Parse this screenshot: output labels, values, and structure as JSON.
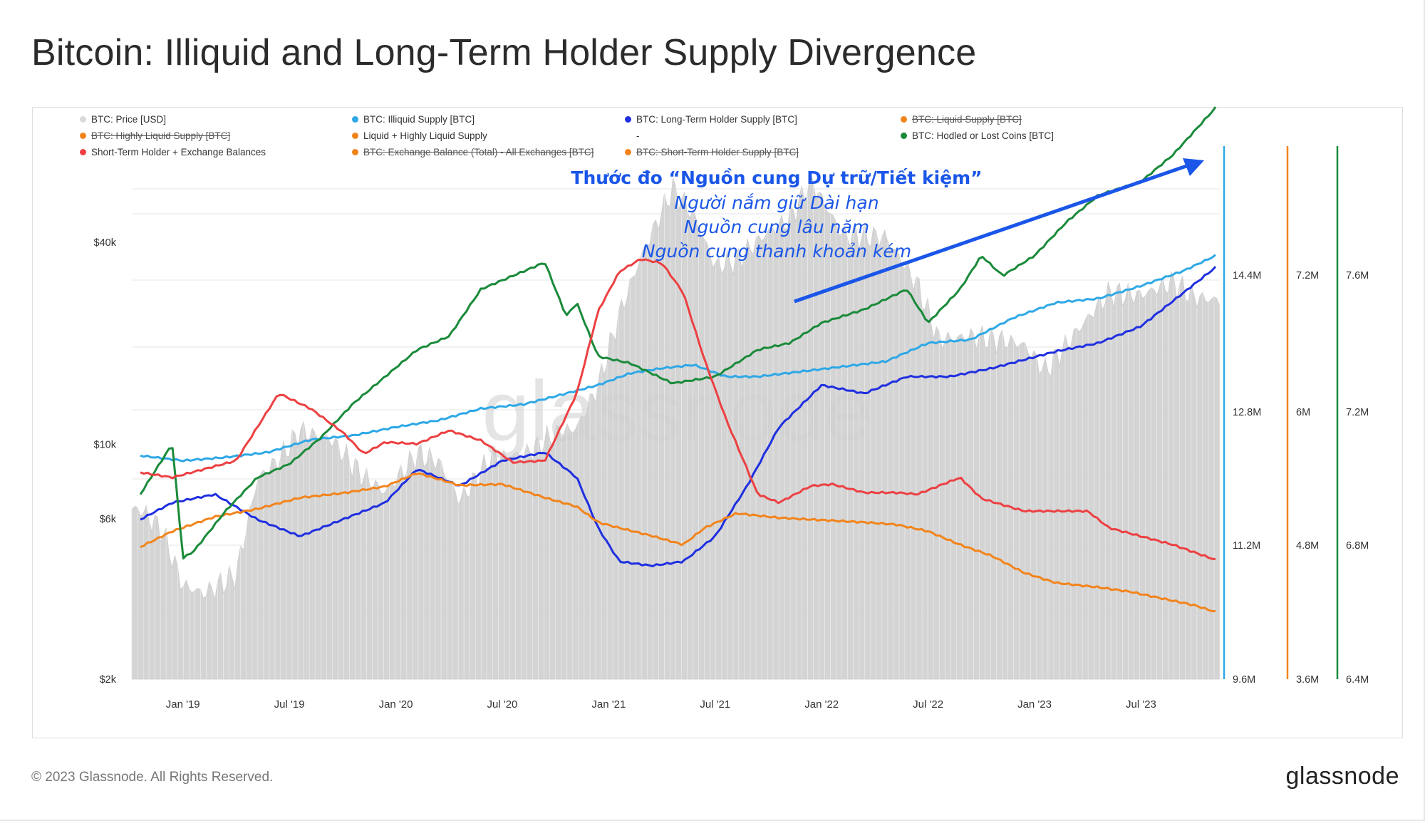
{
  "title": "Bitcoin: Illiquid and Long-Term Holder Supply Divergence",
  "footer": {
    "copyright": "© 2023 Glassnode. All Rights Reserved.",
    "brand": "glassnode"
  },
  "watermark": "glassnode",
  "annotation": {
    "title": "Thước đo “Nguồn cung Dự trữ/Tiết kiệm”",
    "lines": [
      "Người nắm giữ Dài hạn",
      "Nguồn cung lâu năm",
      "Nguồn cung thanh khoản kém"
    ],
    "color": "#1a56e8"
  },
  "legend": [
    {
      "label": "BTC: Price [USD]",
      "color": "#d9d9d9",
      "enabled": true
    },
    {
      "label": "BTC: Illiquid Supply [BTC]",
      "color": "#2ea8e6",
      "enabled": true
    },
    {
      "label": "BTC: Long-Term Holder Supply [BTC]",
      "color": "#1f2fe0",
      "enabled": true
    },
    {
      "label": "BTC: Liquid Supply [BTC]",
      "color": "#f2841c",
      "enabled": false
    },
    {
      "label": "BTC: Highly Liquid Supply [BTC]",
      "color": "#f2841c",
      "enabled": false
    },
    {
      "label": "Liquid + Highly Liquid Supply",
      "color": "#f2841c",
      "enabled": true
    },
    {
      "label": "-",
      "color": "",
      "enabled": true
    },
    {
      "label": "BTC: Hodled or Lost Coins [BTC]",
      "color": "#1a8a3a",
      "enabled": true
    },
    {
      "label": "Short-Term Holder + Exchange Balances",
      "color": "#ec4042",
      "enabled": true
    },
    {
      "label": "BTC: Exchange Balance (Total) - All Exchanges [BTC]",
      "color": "#f2841c",
      "enabled": false
    },
    {
      "label": "BTC: Short-Term Holder Supply [BTC]",
      "color": "#f2841c",
      "enabled": false
    }
  ],
  "chart_data": {
    "type": "line",
    "x_axis": {
      "ticks": [
        "Jan '19",
        "Jul '19",
        "Jan '20",
        "Jul '20",
        "Jan '21",
        "Jul '21",
        "Jan '22",
        "Jul '22",
        "Jan '23",
        "Jul '23"
      ],
      "range": [
        "2018-10",
        "2023-11"
      ]
    },
    "axes": [
      {
        "id": "price",
        "label": "BTC: Price [USD]",
        "scale": "log",
        "ticks": [
          "$2k",
          "$6k",
          "$10k",
          "$40k"
        ],
        "side": "left"
      },
      {
        "id": "blue",
        "color": "#2ea8e6",
        "ticks": [
          "9.6M",
          "11.2M",
          "12.8M",
          "14.4M"
        ],
        "side": "right"
      },
      {
        "id": "orange",
        "color": "#f2841c",
        "ticks": [
          "3.6M",
          "4.8M",
          "6M",
          "7.2M"
        ],
        "side": "right"
      },
      {
        "id": "green",
        "color": "#1a8a3a",
        "ticks": [
          "6.4M",
          "6.8M",
          "7.2M",
          "7.6M"
        ],
        "side": "right"
      }
    ],
    "series": [
      {
        "name": "BTC: Price [USD]",
        "axis": "price",
        "color": "#d0d0d0",
        "style": "bars",
        "t": [
          2018.8,
          2018.9,
          2019.0,
          2019.1,
          2019.25,
          2019.35,
          2019.45,
          2019.55,
          2019.7,
          2019.85,
          2019.95,
          2020.1,
          2020.2,
          2020.3,
          2020.45,
          2020.6,
          2020.75,
          2020.85,
          2020.95,
          2021.05,
          2021.15,
          2021.3,
          2021.4,
          2021.5,
          2021.6,
          2021.75,
          2021.85,
          2021.95,
          2022.1,
          2022.3,
          2022.45,
          2022.55,
          2022.7,
          2022.85,
          2022.95,
          2023.05,
          2023.2,
          2023.35,
          2023.5,
          2023.65,
          2023.75,
          2023.85
        ],
        "values": [
          6400,
          5600,
          3800,
          3600,
          4100,
          7900,
          9000,
          11000,
          10300,
          8000,
          7200,
          9400,
          8900,
          6800,
          9200,
          9300,
          10800,
          11200,
          15000,
          24500,
          36000,
          58000,
          48000,
          34000,
          35500,
          43000,
          47000,
          61000,
          42000,
          41500,
          30000,
          20500,
          21000,
          20500,
          19800,
          16600,
          21800,
          28300,
          27800,
          30500,
          27500,
          26900
        ]
      },
      {
        "name": "BTC: Illiquid Supply [BTC]",
        "axis": "blue",
        "color": "#2ea8e6",
        "t": [
          2018.8,
          2019.0,
          2019.2,
          2019.4,
          2019.6,
          2019.8,
          2020.0,
          2020.2,
          2020.4,
          2020.6,
          2020.8,
          2020.95,
          2021.1,
          2021.25,
          2021.4,
          2021.55,
          2021.7,
          2021.9,
          2022.1,
          2022.3,
          2022.5,
          2022.7,
          2022.9,
          2023.1,
          2023.3,
          2023.5,
          2023.7,
          2023.85
        ],
        "values": [
          12.26,
          12.2,
          12.24,
          12.3,
          12.45,
          12.5,
          12.6,
          12.68,
          12.82,
          12.87,
          13.0,
          13.1,
          13.24,
          13.3,
          13.34,
          13.2,
          13.2,
          13.26,
          13.32,
          13.38,
          13.6,
          13.64,
          13.9,
          14.08,
          14.13,
          14.28,
          14.46,
          14.64
        ]
      },
      {
        "name": "BTC: Long-Term Holder Supply [BTC]",
        "axis": "blue",
        "color": "#1f2fe0",
        "t": [
          2018.8,
          2018.95,
          2019.15,
          2019.35,
          2019.55,
          2019.75,
          2019.95,
          2020.1,
          2020.3,
          2020.5,
          2020.7,
          2020.85,
          2020.95,
          2021.05,
          2021.2,
          2021.35,
          2021.5,
          2021.65,
          2021.8,
          2022.0,
          2022.2,
          2022.4,
          2022.6,
          2022.8,
          2022.95,
          2023.1,
          2023.3,
          2023.5,
          2023.7,
          2023.85
        ],
        "values": [
          11.5,
          11.7,
          11.8,
          11.5,
          11.3,
          11.5,
          11.7,
          12.1,
          11.9,
          12.2,
          12.3,
          12.0,
          11.4,
          11.0,
          10.95,
          11.0,
          11.3,
          11.9,
          12.6,
          13.1,
          13.0,
          13.2,
          13.2,
          13.3,
          13.4,
          13.5,
          13.6,
          13.8,
          14.2,
          14.5
        ]
      },
      {
        "name": "Liquid + Highly Liquid Supply",
        "axis": "orange",
        "color": "#f2841c",
        "t": [
          2018.8,
          2018.95,
          2019.15,
          2019.35,
          2019.55,
          2019.75,
          2019.95,
          2020.1,
          2020.3,
          2020.5,
          2020.7,
          2020.85,
          2020.95,
          2021.05,
          2021.2,
          2021.35,
          2021.45,
          2021.6,
          2021.8,
          2022.0,
          2022.2,
          2022.35,
          2022.5,
          2022.65,
          2022.8,
          2022.95,
          2023.1,
          2023.3,
          2023.45,
          2023.6,
          2023.75,
          2023.85
        ],
        "values": [
          4.78,
          4.92,
          5.05,
          5.12,
          5.22,
          5.26,
          5.32,
          5.44,
          5.33,
          5.34,
          5.22,
          5.14,
          5.0,
          4.95,
          4.88,
          4.8,
          4.95,
          5.08,
          5.04,
          5.02,
          5.0,
          4.98,
          4.92,
          4.8,
          4.7,
          4.55,
          4.46,
          4.42,
          4.38,
          4.32,
          4.26,
          4.2
        ]
      },
      {
        "name": "BTC: Hodled or Lost Coins [BTC]",
        "axis": "green",
        "color": "#1a8a3a",
        "t": [
          2018.8,
          2018.95,
          2019.0,
          2019.05,
          2019.2,
          2019.35,
          2019.5,
          2019.65,
          2019.8,
          2019.95,
          2020.1,
          2020.25,
          2020.4,
          2020.55,
          2020.7,
          2020.8,
          2020.85,
          2020.95,
          2021.1,
          2021.3,
          2021.5,
          2021.7,
          2021.85,
          2022.0,
          2022.2,
          2022.4,
          2022.5,
          2022.65,
          2022.75,
          2022.85,
          2023.0,
          2023.15,
          2023.3,
          2023.5,
          2023.65,
          2023.85
        ],
        "values": [
          6.95,
          7.1,
          6.76,
          6.78,
          6.9,
          7.0,
          7.04,
          7.12,
          7.22,
          7.3,
          7.38,
          7.42,
          7.56,
          7.6,
          7.64,
          7.48,
          7.52,
          7.36,
          7.34,
          7.28,
          7.3,
          7.38,
          7.4,
          7.46,
          7.5,
          7.56,
          7.46,
          7.56,
          7.66,
          7.6,
          7.66,
          7.76,
          7.84,
          7.88,
          7.96,
          8.1
        ]
      },
      {
        "name": "Short-Term Holder + Exchange Balances",
        "axis": "blue",
        "color": "#ec4042",
        "t": [
          2018.8,
          2018.95,
          2019.1,
          2019.25,
          2019.35,
          2019.45,
          2019.6,
          2019.75,
          2019.85,
          2019.95,
          2020.1,
          2020.25,
          2020.4,
          2020.55,
          2020.7,
          2020.85,
          2020.95,
          2021.05,
          2021.15,
          2021.25,
          2021.35,
          2021.45,
          2021.55,
          2021.7,
          2021.8,
          2021.95,
          2022.05,
          2022.2,
          2022.35,
          2022.45,
          2022.55,
          2022.65,
          2022.75,
          2022.95,
          2023.1,
          2023.25,
          2023.35,
          2023.5,
          2023.65,
          2023.85
        ],
        "values": [
          12.06,
          12.0,
          12.1,
          12.2,
          12.6,
          13.0,
          12.82,
          12.54,
          12.28,
          12.42,
          12.4,
          12.56,
          12.44,
          12.18,
          12.2,
          13.0,
          13.98,
          14.45,
          14.6,
          14.55,
          14.2,
          13.4,
          12.7,
          11.8,
          11.7,
          11.9,
          11.92,
          11.82,
          11.82,
          11.8,
          11.9,
          12.0,
          11.75,
          11.6,
          11.6,
          11.6,
          11.4,
          11.3,
          11.2,
          11.02
        ]
      }
    ]
  }
}
